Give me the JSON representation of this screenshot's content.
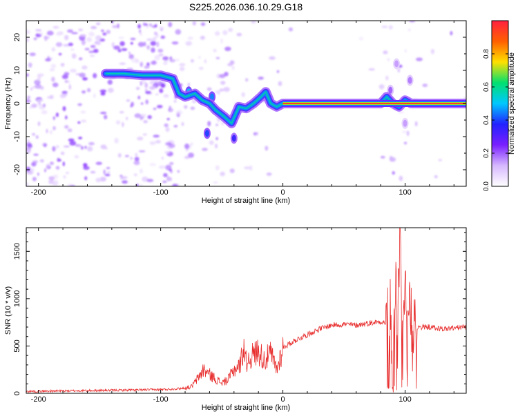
{
  "title": "S225.2026.036.10.29.G18",
  "chart_data": [
    {
      "type": "heatmap",
      "xlabel": "Height of straight line (km)",
      "ylabel": "Frequency (Hz)",
      "xlim": [
        -210,
        150
      ],
      "ylim": [
        -25,
        25
      ],
      "xticks": [
        -200,
        -100,
        0,
        100
      ],
      "yticks": [
        -20,
        -10,
        0,
        10,
        20
      ],
      "tick_labels_x": [
        "-200",
        "-100",
        "0",
        "100"
      ],
      "tick_labels_y": [
        "-20",
        "-10",
        "0",
        "10",
        "20"
      ],
      "colorbar": {
        "label": "Normalized spectral amplitude",
        "range": [
          0,
          1
        ],
        "ticks": [
          0.0,
          0.2,
          0.4,
          0.6,
          0.8
        ],
        "tick_labels": [
          "0.0",
          "0.2",
          "0.4",
          "0.6",
          "0.8"
        ],
        "stops": [
          "#ffffff",
          "#d6b8ff",
          "#7a1fff",
          "#2222ff",
          "#00c8ff",
          "#00e070",
          "#ffe000",
          "#ff6000",
          "#ff2040"
        ]
      },
      "ridge": {
        "name": "dominant frequency",
        "x": [
          -145,
          -130,
          -115,
          -100,
          -90,
          -85,
          -80,
          -72,
          -66,
          -60,
          -55,
          -48,
          -42,
          -36,
          -30,
          -24,
          -18,
          -14,
          -10,
          -5,
          0,
          40,
          80,
          85,
          90,
          95,
          100,
          105,
          110,
          150
        ],
        "y": [
          9,
          9,
          8.5,
          8.5,
          7.5,
          3,
          2,
          3,
          1,
          0,
          -2,
          -4,
          -6,
          -1,
          -1.5,
          0,
          2,
          3.5,
          0,
          -1,
          0,
          0,
          0,
          2,
          0,
          -1,
          1,
          0,
          0,
          0
        ]
      },
      "blobs": [
        {
          "x": -62,
          "y": -9,
          "v": 0.4
        },
        {
          "x": -40,
          "y": -10.5,
          "v": 0.35
        },
        {
          "x": -40,
          "y": -5,
          "v": 0.3
        },
        {
          "x": -58,
          "y": 2,
          "v": 0.45
        },
        {
          "x": -77,
          "y": 3.5,
          "v": 0.5
        },
        {
          "x": 88,
          "y": 4,
          "v": 0.2
        },
        {
          "x": 93,
          "y": 12,
          "v": 0.15
        },
        {
          "x": 100,
          "y": -6,
          "v": 0.15
        },
        {
          "x": 104,
          "y": 7,
          "v": 0.18
        }
      ]
    },
    {
      "type": "line",
      "xlabel": "Height of straight line (km)",
      "ylabel": "SNR (10 * v/v)",
      "xlim": [
        -210,
        150
      ],
      "ylim": [
        0,
        1750
      ],
      "xticks": [
        -200,
        -100,
        0,
        100
      ],
      "yticks": [
        0,
        500,
        1000,
        1500
      ],
      "tick_labels_x": [
        "-200",
        "-100",
        "0",
        "100"
      ],
      "tick_labels_y": [
        "0",
        "500",
        "1000",
        "1500"
      ],
      "color": "#e83030",
      "series": [
        {
          "x": [
            -210,
            -180,
            -150,
            -120,
            -100,
            -90,
            -80,
            -75,
            -70,
            -65,
            -60,
            -55,
            -50,
            -45,
            -40,
            -35,
            -32,
            -30,
            -25,
            -20,
            -15,
            -10,
            -5,
            0,
            10,
            20,
            30,
            40,
            50,
            60,
            70,
            80,
            85,
            88,
            90,
            92,
            94,
            96,
            98,
            100,
            102,
            104,
            106,
            108,
            110,
            120,
            130,
            140,
            150
          ],
          "y": [
            20,
            25,
            30,
            35,
            40,
            45,
            55,
            70,
            150,
            250,
            200,
            150,
            110,
            140,
            250,
            300,
            500,
            330,
            400,
            450,
            350,
            420,
            250,
            480,
            560,
            620,
            680,
            720,
            730,
            720,
            740,
            760,
            740,
            800,
            200,
            1100,
            600,
            1650,
            400,
            1250,
            300,
            1150,
            400,
            900,
            700,
            700,
            680,
            690,
            700
          ]
        }
      ]
    }
  ]
}
